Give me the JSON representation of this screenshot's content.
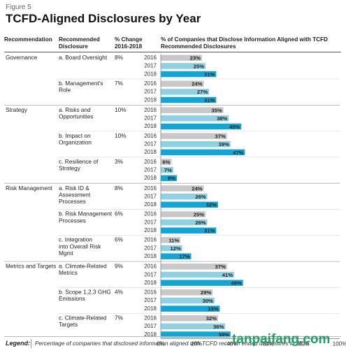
{
  "figure_label": "Figure 5",
  "title": "TCFD-Aligned Disclosures by Year",
  "headers": {
    "recommendation": "Recommendation",
    "disclosure": "Recommended Disclosure",
    "pct_change": "% Change 2016-2018",
    "chart": "% of Companies that Disclose Information Aligned with TCFD Recommended Disclosures"
  },
  "legend": {
    "title": "Legend:",
    "text": "Percentage of companies that disclosed information aligned with TCFD recomm ended disclosures in 2018"
  },
  "watermark": "tanpaifang.com",
  "colors": {
    "2016": "#c8c8c8",
    "2017": "#8fd0e3",
    "2018": "#12a6d6",
    "label_2016": "#ffffff",
    "label_2017": "#ffffff",
    "label_2018": "#ffffff",
    "watermark": "#1fa06a"
  },
  "chart_data": {
    "type": "bar",
    "orientation": "horizontal",
    "xlim": [
      0,
      100
    ],
    "x_ticks": [
      "0%",
      "20%",
      "40%",
      "60%",
      "80%",
      "100%"
    ],
    "years": [
      "2016",
      "2017",
      "2018"
    ],
    "groups": [
      {
        "recommendation": "Governance",
        "disclosures": [
          {
            "name": "a. Board Oversight",
            "change": "8%",
            "values": [
              23,
              25,
              31
            ]
          },
          {
            "name": "b. Management's Role",
            "change": "7%",
            "values": [
              24,
              27,
              31
            ]
          }
        ]
      },
      {
        "recommendation": "Strategy",
        "disclosures": [
          {
            "name": "a. Risks and Opportunities",
            "change": "10%",
            "values": [
              35,
              38,
              45
            ]
          },
          {
            "name": "b. Impact on Organization",
            "change": "10%",
            "values": [
              37,
              39,
              47
            ]
          },
          {
            "name": "c. Resilience of Strategy",
            "change": "3%",
            "values": [
              6,
              7,
              9
            ]
          }
        ]
      },
      {
        "recommendation": "Risk Management",
        "disclosures": [
          {
            "name": "a. Risk ID & Assessment Processes",
            "change": "8%",
            "values": [
              24,
              26,
              32
            ]
          },
          {
            "name": "b. Risk Management Processes",
            "change": "6%",
            "values": [
              25,
              26,
              31
            ]
          },
          {
            "name": "c. Integration into Overall Risk Mgmt",
            "change": "6%",
            "values": [
              11,
              12,
              17
            ]
          }
        ]
      },
      {
        "recommendation": "Metrics and Targets",
        "disclosures": [
          {
            "name": "a. Climate-Related Metrics",
            "change": "9%",
            "values": [
              37,
              41,
              46
            ]
          },
          {
            "name": "b. Scope 1,2,3 GHG Emissions",
            "change": "4%",
            "values": [
              29,
              30,
              33
            ]
          },
          {
            "name": "c. Climate-Related Targets",
            "change": "7%",
            "values": [
              32,
              36,
              39
            ]
          }
        ]
      }
    ]
  }
}
